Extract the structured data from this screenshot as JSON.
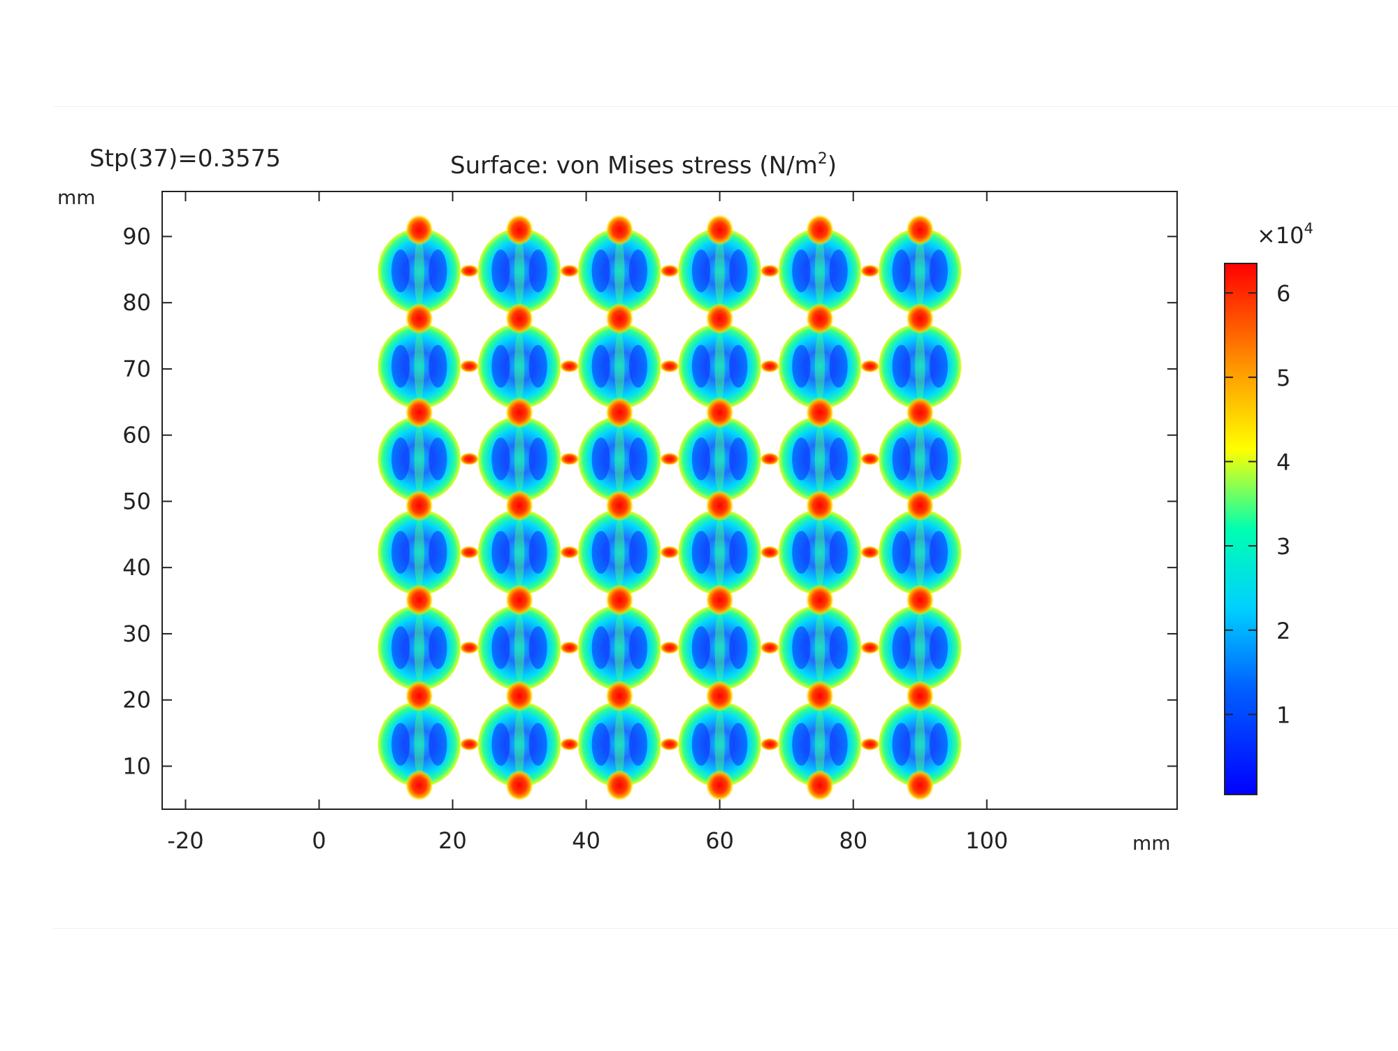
{
  "plot": {
    "step_label": "Stp(37)=0.3575",
    "title_prefix": "Surface: von Mises stress (N/m",
    "title_sup": "2",
    "title_suffix": ")",
    "x_unit": "mm",
    "y_unit": "mm"
  },
  "colorbar": {
    "multiplier_base": "×10",
    "multiplier_exp": "4",
    "ticks": [
      "1",
      "2",
      "3",
      "4",
      "5",
      "6"
    ],
    "tick_values": [
      1,
      2,
      3,
      4,
      5,
      6
    ],
    "range": [
      0.05,
      6.35
    ],
    "colormap": [
      "#0000ff",
      "#00a5ff",
      "#00ffe6",
      "#ffff00",
      "#ff9900",
      "#ff0000"
    ]
  },
  "chart_data": {
    "type": "heatmap",
    "title": "Surface: von Mises stress (N/m^2)",
    "annotation": "Stp(37)=0.3575",
    "xlabel": "mm",
    "ylabel": "mm",
    "x_ticks": [
      -20,
      0,
      20,
      40,
      60,
      80,
      100
    ],
    "y_ticks": [
      10,
      20,
      30,
      40,
      50,
      60,
      70,
      80,
      90
    ],
    "xlim": [
      -23.5,
      128.5
    ],
    "ylim": [
      3.5,
      96.8
    ],
    "grid": false,
    "color_scale": {
      "min": 500,
      "max": 63500,
      "multiplier": 10000,
      "unit": "N/m^2"
    },
    "lattice": {
      "rows": 6,
      "cols": 6,
      "cell_x_centers": [
        15,
        30,
        45,
        60,
        75,
        90
      ],
      "cell_y_centers": [
        13.3,
        27.9,
        42.3,
        56.4,
        70.4,
        84.8
      ],
      "cell_radius": 6.2,
      "background_stress": 12000,
      "max_stress": 63500
    }
  }
}
